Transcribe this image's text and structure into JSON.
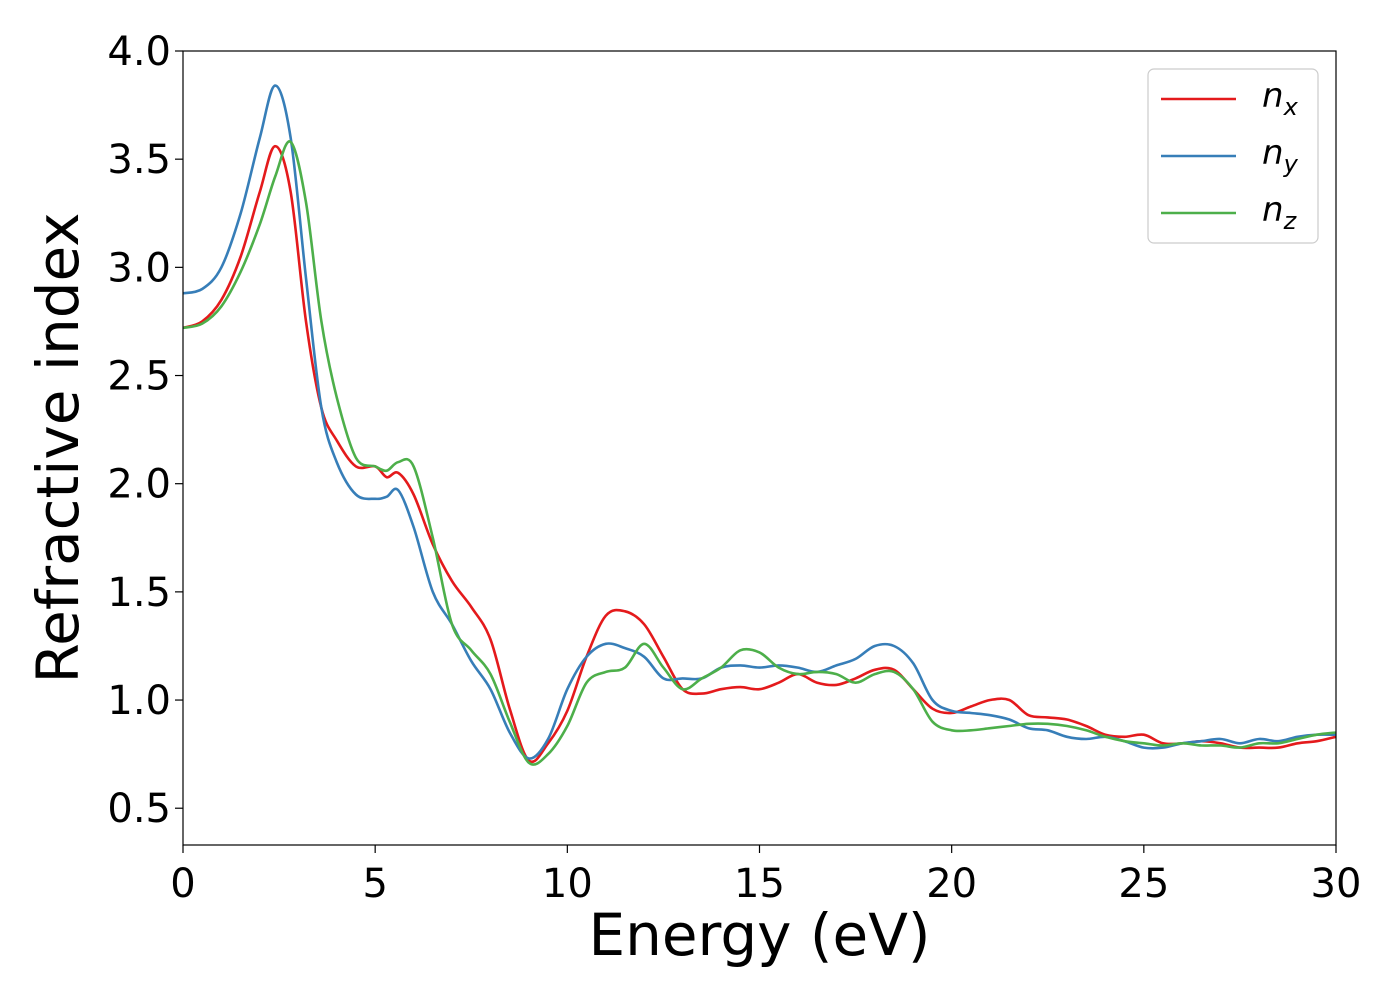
{
  "chart_data": {
    "type": "line",
    "title": "",
    "xlabel": "Energy (eV)",
    "ylabel": "Refractive index",
    "xlim": [
      0,
      30
    ],
    "ylim": [
      0.33,
      4.0
    ],
    "xticks": [
      0,
      5,
      10,
      15,
      20,
      25,
      30
    ],
    "xtick_labels": [
      "0",
      "5",
      "10",
      "15",
      "20",
      "25",
      "30"
    ],
    "yticks": [
      0.5,
      1.0,
      1.5,
      2.0,
      2.5,
      3.0,
      3.5,
      4.0
    ],
    "ytick_labels": [
      "0.5",
      "1.0",
      "1.5",
      "2.0",
      "2.5",
      "3.0",
      "3.5",
      "4.0"
    ],
    "grid": false,
    "legend_position": "top-right",
    "series": [
      {
        "name": "n",
        "subscript": "x",
        "color": "#e41a1c",
        "x": [
          0,
          0.5,
          1.0,
          1.5,
          2.0,
          2.4,
          2.8,
          3.2,
          3.6,
          4.0,
          4.5,
          5.0,
          5.3,
          5.6,
          6.0,
          6.5,
          7.0,
          7.5,
          8.0,
          8.5,
          9.0,
          9.5,
          10.0,
          10.5,
          11.0,
          11.5,
          12.0,
          12.5,
          13.0,
          13.5,
          14.0,
          14.5,
          15.0,
          15.5,
          16.0,
          16.5,
          17.0,
          17.5,
          18.0,
          18.5,
          19.0,
          19.5,
          20.0,
          20.5,
          21.0,
          21.5,
          22.0,
          22.5,
          23.0,
          23.5,
          24.0,
          24.5,
          25.0,
          25.5,
          26.0,
          26.5,
          27.0,
          27.5,
          28.0,
          28.5,
          29.0,
          29.5,
          30.0
        ],
        "y": [
          2.72,
          2.75,
          2.85,
          3.05,
          3.35,
          3.56,
          3.35,
          2.75,
          2.35,
          2.2,
          2.08,
          2.08,
          2.03,
          2.05,
          1.95,
          1.72,
          1.55,
          1.43,
          1.28,
          0.96,
          0.72,
          0.8,
          0.95,
          1.2,
          1.39,
          1.41,
          1.35,
          1.2,
          1.05,
          1.03,
          1.05,
          1.06,
          1.05,
          1.08,
          1.12,
          1.08,
          1.07,
          1.1,
          1.14,
          1.14,
          1.05,
          0.96,
          0.94,
          0.97,
          1.0,
          1.0,
          0.93,
          0.92,
          0.91,
          0.88,
          0.84,
          0.83,
          0.84,
          0.8,
          0.8,
          0.81,
          0.8,
          0.78,
          0.78,
          0.78,
          0.8,
          0.81,
          0.83
        ]
      },
      {
        "name": "n",
        "subscript": "y",
        "color": "#377eb8",
        "x": [
          0,
          0.5,
          1.0,
          1.5,
          2.0,
          2.4,
          2.8,
          3.2,
          3.6,
          4.0,
          4.5,
          5.0,
          5.3,
          5.6,
          6.0,
          6.5,
          7.0,
          7.5,
          8.0,
          8.5,
          9.0,
          9.5,
          10.0,
          10.5,
          11.0,
          11.5,
          12.0,
          12.5,
          13.0,
          13.5,
          14.0,
          14.5,
          15.0,
          15.5,
          16.0,
          16.5,
          17.0,
          17.5,
          18.0,
          18.5,
          19.0,
          19.5,
          20.0,
          20.5,
          21.0,
          21.5,
          22.0,
          22.5,
          23.0,
          23.5,
          24.0,
          24.5,
          25.0,
          25.5,
          26.0,
          26.5,
          27.0,
          27.5,
          28.0,
          28.5,
          29.0,
          29.5,
          30.0
        ],
        "y": [
          2.88,
          2.9,
          3.0,
          3.25,
          3.6,
          3.84,
          3.6,
          2.95,
          2.35,
          2.1,
          1.95,
          1.93,
          1.94,
          1.97,
          1.8,
          1.5,
          1.35,
          1.18,
          1.05,
          0.85,
          0.73,
          0.82,
          1.05,
          1.2,
          1.26,
          1.24,
          1.2,
          1.1,
          1.1,
          1.1,
          1.15,
          1.16,
          1.15,
          1.16,
          1.15,
          1.13,
          1.16,
          1.19,
          1.25,
          1.25,
          1.17,
          1.0,
          0.95,
          0.94,
          0.93,
          0.91,
          0.87,
          0.86,
          0.83,
          0.82,
          0.83,
          0.81,
          0.78,
          0.78,
          0.8,
          0.81,
          0.82,
          0.8,
          0.82,
          0.81,
          0.83,
          0.84,
          0.84
        ]
      },
      {
        "name": "n",
        "subscript": "z",
        "color": "#4daf4a",
        "x": [
          0,
          0.5,
          1.0,
          1.5,
          2.0,
          2.4,
          2.8,
          3.2,
          3.6,
          4.0,
          4.5,
          5.0,
          5.3,
          5.6,
          6.0,
          6.5,
          7.0,
          7.5,
          8.0,
          8.5,
          9.0,
          9.5,
          10.0,
          10.5,
          11.0,
          11.5,
          12.0,
          12.5,
          13.0,
          13.5,
          14.0,
          14.5,
          15.0,
          15.5,
          16.0,
          16.5,
          17.0,
          17.5,
          18.0,
          18.5,
          19.0,
          19.5,
          20.0,
          20.5,
          21.0,
          21.5,
          22.0,
          22.5,
          23.0,
          23.5,
          24.0,
          24.5,
          25.0,
          25.5,
          26.0,
          26.5,
          27.0,
          27.5,
          28.0,
          28.5,
          29.0,
          29.5,
          30.0
        ],
        "y": [
          2.72,
          2.74,
          2.82,
          2.98,
          3.2,
          3.42,
          3.58,
          3.3,
          2.75,
          2.4,
          2.12,
          2.08,
          2.06,
          2.1,
          2.08,
          1.75,
          1.35,
          1.23,
          1.12,
          0.9,
          0.71,
          0.75,
          0.88,
          1.08,
          1.13,
          1.15,
          1.26,
          1.15,
          1.05,
          1.1,
          1.15,
          1.23,
          1.22,
          1.15,
          1.12,
          1.13,
          1.12,
          1.08,
          1.12,
          1.13,
          1.05,
          0.9,
          0.86,
          0.86,
          0.87,
          0.88,
          0.89,
          0.89,
          0.88,
          0.86,
          0.83,
          0.81,
          0.8,
          0.79,
          0.8,
          0.79,
          0.79,
          0.78,
          0.8,
          0.8,
          0.82,
          0.84,
          0.85
        ]
      }
    ]
  }
}
